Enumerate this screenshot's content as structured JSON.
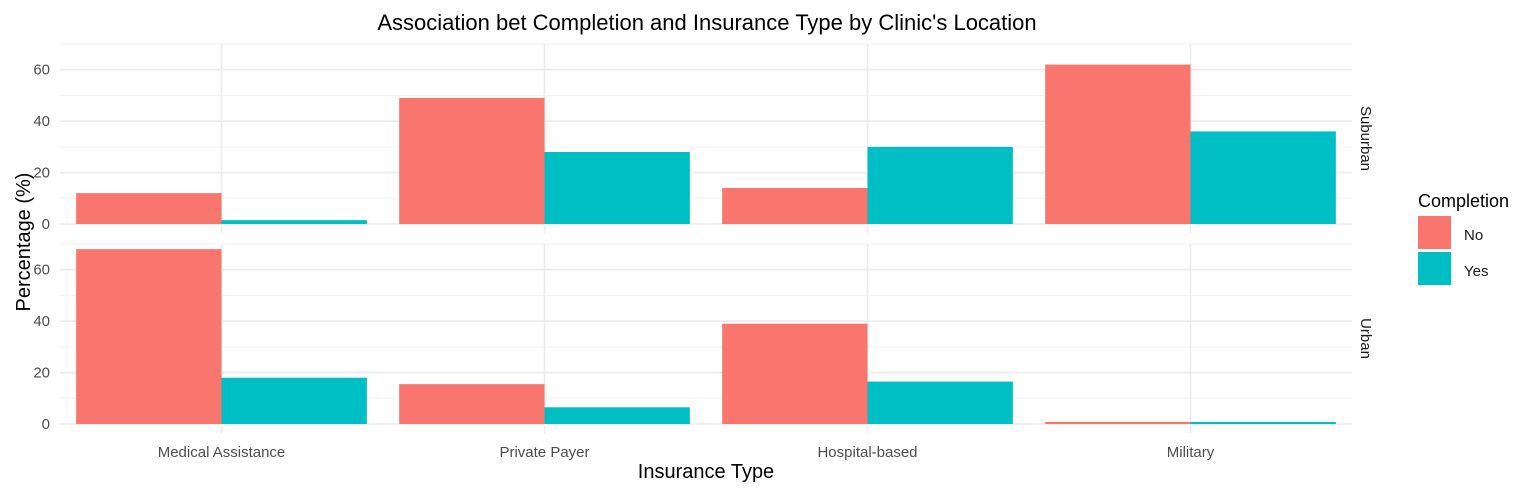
{
  "chart_data": {
    "type": "bar",
    "title": "Association bet Completion and Insurance Type by Clinic's Location",
    "xlabel": "Insurance Type",
    "ylabel": "Percentage (%)",
    "categories": [
      "Medical Assistance",
      "Private Payer",
      "Hospital-based",
      "Military"
    ],
    "y_ticks": [
      0,
      20,
      40,
      60
    ],
    "ylim": [
      0,
      70
    ],
    "grid": true,
    "legend": {
      "title": "Completion",
      "position": "right",
      "entries": [
        {
          "label": "No",
          "color": "#F8766D"
        },
        {
          "label": "Yes",
          "color": "#00BFC4"
        }
      ]
    },
    "facets": [
      {
        "label": "Suburban",
        "series": [
          {
            "name": "No",
            "color": "#F8766D",
            "values": [
              12,
              49,
              14,
              62
            ]
          },
          {
            "name": "Yes",
            "color": "#00BFC4",
            "values": [
              1.5,
              28,
              30,
              36
            ]
          }
        ]
      },
      {
        "label": "Urban",
        "series": [
          {
            "name": "No",
            "color": "#F8766D",
            "values": [
              68,
              15.5,
              39,
              0.8
            ]
          },
          {
            "name": "Yes",
            "color": "#00BFC4",
            "values": [
              18,
              6.5,
              16.5,
              0.8
            ]
          }
        ]
      }
    ]
  }
}
